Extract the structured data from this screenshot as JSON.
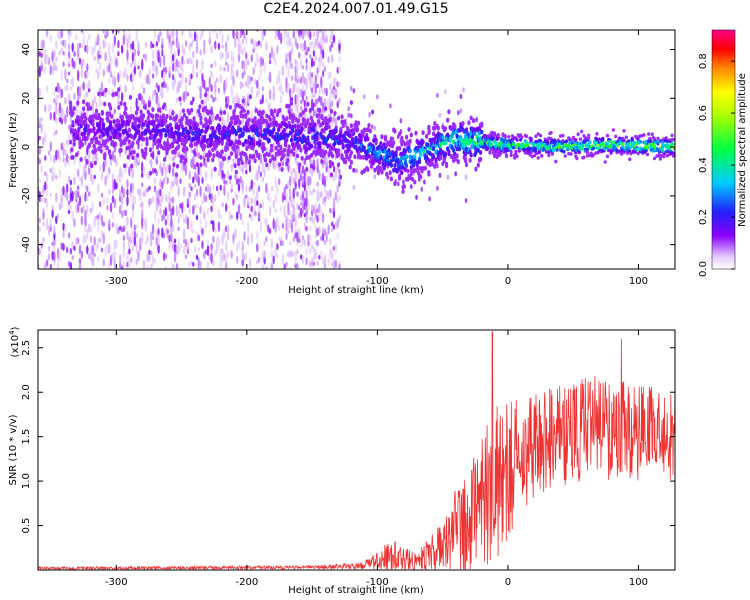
{
  "title": "C2E4.2024.007.01.49.G15",
  "chart_data": [
    {
      "type": "heatmap",
      "title": "",
      "xlabel": "Height of straight line (km)",
      "ylabel": "Frequency (Hz)",
      "xlim": [
        -360,
        128
      ],
      "ylim": [
        -50,
        48
      ],
      "xticks": [
        "-300",
        "-200",
        "-100",
        "0",
        "100"
      ],
      "yticks": [
        "40",
        "20",
        "0",
        "-20",
        "-40"
      ],
      "colorbar": {
        "label": "Normalized spectral amplitude",
        "range": [
          0,
          0.92
        ],
        "ticks": [
          "0.0",
          "0.2",
          "0.4",
          "0.6",
          "0.8"
        ],
        "colormap": "rainbow (white-violet-blue-cyan-green-yellow-orange-red-pink)"
      },
      "ridge": [
        {
          "x": -340,
          "y": 7
        },
        {
          "x": -300,
          "y": 7
        },
        {
          "x": -260,
          "y": 6
        },
        {
          "x": -220,
          "y": 5
        },
        {
          "x": -180,
          "y": 5
        },
        {
          "x": -140,
          "y": 4
        },
        {
          "x": -120,
          "y": 3
        },
        {
          "x": -100,
          "y": -2
        },
        {
          "x": -85,
          "y": -6
        },
        {
          "x": -70,
          "y": -3
        },
        {
          "x": -55,
          "y": 0
        },
        {
          "x": -40,
          "y": 3
        },
        {
          "x": -20,
          "y": 2
        },
        {
          "x": 0,
          "y": 1
        },
        {
          "x": 40,
          "y": 0
        },
        {
          "x": 80,
          "y": 1
        },
        {
          "x": 128,
          "y": 0
        }
      ],
      "ridge_amplitude": [
        {
          "x": -340,
          "a": 0.2
        },
        {
          "x": -130,
          "a": 0.3
        },
        {
          "x": -80,
          "a": 0.4
        },
        {
          "x": -30,
          "a": 0.55
        },
        {
          "x": 0,
          "a": 0.6
        },
        {
          "x": 128,
          "a": 0.7
        }
      ],
      "grid": false
    },
    {
      "type": "line",
      "title": "",
      "xlabel": "Height of straight line (km)",
      "ylabel": "SNR (10 * v/v)",
      "y_multiplier": "(x10",
      "y_exponent": "4",
      "y_multiplier_close": ")",
      "xlim": [
        -360,
        128
      ],
      "ylim": [
        0,
        2.7
      ],
      "xticks": [
        "-300",
        "-200",
        "-100",
        "0",
        "100"
      ],
      "yticks": [
        "2.5",
        "2.0",
        "1.5",
        "1.0",
        "0.5"
      ],
      "series": [
        {
          "color": "#ee3333",
          "envelope": [
            {
              "x": -360,
              "mean": 0.02,
              "amp": 0.015
            },
            {
              "x": -150,
              "mean": 0.03,
              "amp": 0.02
            },
            {
              "x": -110,
              "mean": 0.05,
              "amp": 0.04
            },
            {
              "x": -90,
              "mean": 0.15,
              "amp": 0.2
            },
            {
              "x": -70,
              "mean": 0.08,
              "amp": 0.1
            },
            {
              "x": -50,
              "mean": 0.3,
              "amp": 0.3
            },
            {
              "x": -30,
              "mean": 0.6,
              "amp": 0.7
            },
            {
              "x": -10,
              "mean": 1.0,
              "amp": 0.9
            },
            {
              "x": 20,
              "mean": 1.4,
              "amp": 0.6
            },
            {
              "x": 60,
              "mean": 1.6,
              "amp": 0.6
            },
            {
              "x": 100,
              "mean": 1.55,
              "amp": 0.55
            },
            {
              "x": 128,
              "mean": 1.5,
              "amp": 0.5
            }
          ],
          "peaks": [
            {
              "x": -12,
              "y": 2.68
            },
            {
              "x": 87,
              "y": 2.6
            }
          ]
        }
      ],
      "grid": false
    }
  ]
}
